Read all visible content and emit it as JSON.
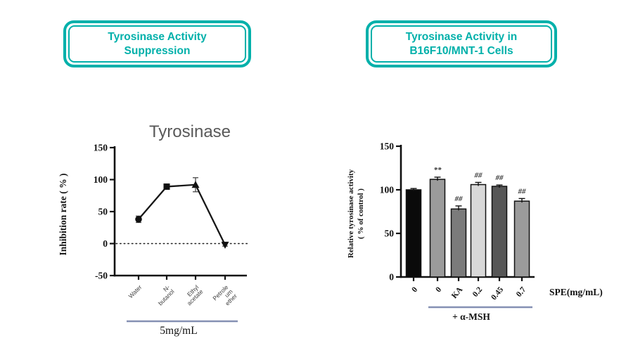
{
  "headers": {
    "accent_color": "#00b0aa",
    "left": {
      "line1": "Tyrosinase Activity",
      "line2": "Suppression"
    },
    "right": {
      "line1": "Tyrosinase Activity in",
      "line2": "B16F10/MNT-1 Cells"
    }
  },
  "chart_data": [
    {
      "type": "line",
      "title": "Tyrosinase",
      "ylabel": "Inhibition rate ( % )",
      "ylim": [
        -50,
        150
      ],
      "yticks": [
        150,
        100,
        50,
        0,
        -50
      ],
      "categories": [
        "Water",
        "N-\nbutanol",
        "Ethyl\nacetate",
        "Petrole\num\nether"
      ],
      "values": [
        38,
        89,
        92,
        -2
      ],
      "errors": [
        5,
        2,
        11,
        2
      ],
      "markers": [
        "circle",
        "square",
        "triangle-up",
        "triangle-down"
      ],
      "zero_line_dotted": true,
      "group_label": "5mg/mL",
      "line_color": "#161616",
      "title_color": "#595959",
      "bracket_color": "#8590b3",
      "legend": "none",
      "grid": false
    },
    {
      "type": "bar",
      "title": "",
      "ylabel_line1": "Relative tyrosinase activity",
      "ylabel_line2": "( % of control )",
      "ylim": [
        0,
        150
      ],
      "yticks": [
        0,
        50,
        100,
        150
      ],
      "categories": [
        "0",
        "0",
        "KA",
        "0.2",
        "0.45",
        "0.7"
      ],
      "values": [
        100,
        112,
        78,
        106,
        104,
        87
      ],
      "errors": [
        1.5,
        2.5,
        3.5,
        2.5,
        1.5,
        3
      ],
      "annotations": [
        "",
        "**",
        "##",
        "##",
        "##",
        "##"
      ],
      "bar_colors": [
        "#0a0a0a",
        "#9b9b9b",
        "#7b7b7b",
        "#d8d8d8",
        "#575757",
        "#9b9b9b"
      ],
      "bar_edge_color": "#111111",
      "axis_label": "SPE(mg/mL)",
      "group_label": "+ α-MSH",
      "group_span_bars": [
        2,
        6
      ],
      "bracket_color": "#8590b3",
      "legend": "none",
      "grid": false
    }
  ]
}
